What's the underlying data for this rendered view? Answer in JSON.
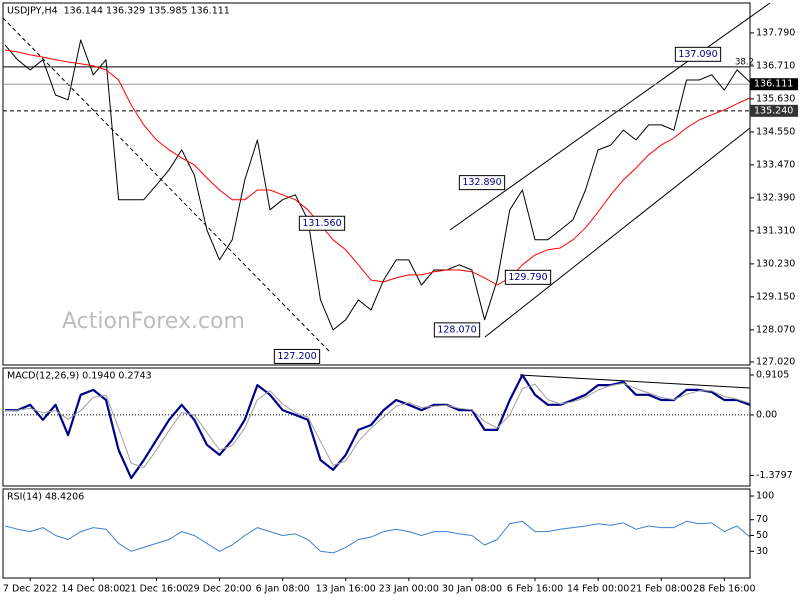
{
  "chart_data": [
    {
      "type": "line",
      "title": "USDJPY,H4",
      "subtitle": "136.144 136.329 135.985 136.111",
      "watermark": "ActionForex.com",
      "ylim": [
        126.92,
        138.77
      ],
      "yticks": [
        {
          "value": 137.79,
          "label": "137.790"
        },
        {
          "value": 136.71,
          "label": "136.710"
        },
        {
          "value": 135.63,
          "label": "135.630"
        },
        {
          "value": 134.55,
          "label": "134.550"
        },
        {
          "value": 133.47,
          "label": "133.470"
        },
        {
          "value": 132.39,
          "label": "132.390"
        },
        {
          "value": 131.31,
          "label": "131.310"
        },
        {
          "value": 130.23,
          "label": "130.230"
        },
        {
          "value": 129.15,
          "label": "129.150"
        },
        {
          "value": 128.07,
          "label": "128.070"
        },
        {
          "value": 127.02,
          "label": "127.020"
        }
      ],
      "series": [
        {
          "color": "#000000",
          "values": [
            137.4,
            136.91,
            136.58,
            136.91,
            135.76,
            135.6,
            137.56,
            136.42,
            136.91,
            132.33,
            132.33,
            132.33,
            132.81,
            133.31,
            133.96,
            133.14,
            131.34,
            130.36,
            131.02,
            132.98,
            134.29,
            132.0,
            132.33,
            132.49,
            131.67,
            129.05,
            128.07,
            128.4,
            129.05,
            128.72,
            129.7,
            130.36,
            130.36,
            129.54,
            130.03,
            130.03,
            130.2,
            130.03,
            128.4,
            129.7,
            132.0,
            132.65,
            131.02,
            131.02,
            131.34,
            131.67,
            132.65,
            133.96,
            134.12,
            134.61,
            134.29,
            134.78,
            134.78,
            134.61,
            136.25,
            136.25,
            136.42,
            135.92,
            136.58,
            136.19
          ]
        },
        {
          "color": "#ff0000",
          "values": [
            137.23,
            137.17,
            137.07,
            137.0,
            136.91,
            136.84,
            136.78,
            136.71,
            136.58,
            136.25,
            135.43,
            134.78,
            134.29,
            133.96,
            133.7,
            133.47,
            133.04,
            132.65,
            132.33,
            132.33,
            132.65,
            132.65,
            132.49,
            132.33,
            132.0,
            131.51,
            131.02,
            130.69,
            130.2,
            129.7,
            129.64,
            129.77,
            129.87,
            129.87,
            129.97,
            130.03,
            130.03,
            129.97,
            129.77,
            129.54,
            129.77,
            130.2,
            130.52,
            130.69,
            130.75,
            131.02,
            131.41,
            131.93,
            132.49,
            132.98,
            133.37,
            133.8,
            134.12,
            134.35,
            134.68,
            134.94,
            135.11,
            135.27,
            135.47,
            135.66
          ]
        }
      ],
      "annotations": [
        {
          "value": 137.09,
          "label": "137.090"
        },
        {
          "value": 132.89,
          "label": "132.890"
        },
        {
          "value": 131.56,
          "label": "131.560"
        },
        {
          "value": 129.79,
          "label": "129.790"
        },
        {
          "value": 128.07,
          "label": "128.070"
        },
        {
          "value": 127.2,
          "label": "127.200"
        }
      ],
      "fib_ratio": 38.2,
      "fib_level": 136.68,
      "last_price": {
        "value": 136.111,
        "label": "136.111"
      },
      "support": {
        "value": 135.24,
        "label": "135.240"
      }
    },
    {
      "type": "line",
      "title": "MACD(12,26,9) 0.1940 0.2743",
      "zero_line": true,
      "ylim": [
        -1.62,
        1.07
      ],
      "yticks": [
        0.9105,
        {
          "value": 0,
          "label": "0.00"
        },
        -1.3797
      ],
      "series": [
        {
          "color": "#00008b",
          "width": 2.2,
          "values": [
            0.11,
            0.11,
            0.23,
            -0.11,
            0.23,
            -0.46,
            0.46,
            0.57,
            0.34,
            -0.8,
            -1.44,
            -1.03,
            -0.57,
            -0.11,
            0.23,
            -0.11,
            -0.68,
            -0.91,
            -0.57,
            -0.11,
            0.68,
            0.46,
            0.11,
            0,
            -0.11,
            -1.03,
            -1.25,
            -0.91,
            -0.34,
            -0.23,
            0.11,
            0.34,
            0.23,
            0.11,
            0.23,
            0.23,
            0.11,
            0.11,
            -0.34,
            -0.34,
            0.34,
            0.91,
            0.46,
            0.23,
            0.23,
            0.34,
            0.46,
            0.68,
            0.68,
            0.75,
            0.46,
            0.46,
            0.34,
            0.34,
            0.57,
            0.57,
            0.52,
            0.34,
            0.34,
            0.23
          ]
        },
        {
          "color": "#a0a0a0",
          "width": 1,
          "values": [
            0.1,
            0.11,
            0.15,
            0.05,
            0.1,
            -0.1,
            0.1,
            0.4,
            0.45,
            -0.3,
            -1.1,
            -1.2,
            -0.8,
            -0.35,
            0.05,
            0.0,
            -0.4,
            -0.8,
            -0.7,
            -0.3,
            0.35,
            0.55,
            0.25,
            0.05,
            -0.05,
            -0.6,
            -1.15,
            -1.05,
            -0.6,
            -0.3,
            -0.05,
            0.2,
            0.28,
            0.17,
            0.2,
            0.22,
            0.15,
            0.12,
            -0.15,
            -0.3,
            0.0,
            0.6,
            0.7,
            0.35,
            0.25,
            0.3,
            0.4,
            0.57,
            0.67,
            0.72,
            0.6,
            0.5,
            0.4,
            0.35,
            0.47,
            0.55,
            0.55,
            0.42,
            0.36,
            0.27
          ]
        }
      ]
    },
    {
      "type": "line",
      "title": "RSI(14) 48.4206",
      "ylim": [
        -3.8,
        108.9
      ],
      "yticks": [
        100,
        70,
        50,
        30
      ],
      "categories": [
        null,
        null,
        "7 Dec 2022",
        null,
        null,
        null,
        null,
        "14 Dec 08:00",
        null,
        null,
        null,
        null,
        "21 Dec 16:00",
        null,
        null,
        null,
        null,
        "29 Dec 20:00",
        null,
        null,
        null,
        null,
        "6 Jan 08:00",
        null,
        null,
        null,
        null,
        "13 Jan 16:00",
        null,
        null,
        null,
        null,
        "23 Jan 00:00",
        null,
        null,
        null,
        null,
        "30 Jan 08:00",
        null,
        null,
        null,
        null,
        "6 Feb 16:00",
        null,
        null,
        null,
        null,
        "14 Feb 00:00",
        null,
        null,
        null,
        null,
        "21 Feb 08:00",
        null,
        null,
        null,
        null,
        "28 Feb 16:00",
        null,
        null
      ],
      "series": [
        {
          "color": "#3f7fcf",
          "width": 1,
          "values": [
            62,
            58,
            55,
            60,
            50,
            45,
            55,
            60,
            58,
            40,
            30,
            35,
            40,
            45,
            55,
            50,
            40,
            30,
            38,
            50,
            60,
            55,
            50,
            52,
            45,
            30,
            28,
            35,
            45,
            48,
            55,
            58,
            55,
            50,
            55,
            55,
            52,
            50,
            38,
            45,
            65,
            68,
            55,
            55,
            58,
            60,
            62,
            65,
            63,
            66,
            58,
            62,
            60,
            60,
            68,
            65,
            66,
            55,
            62,
            48.42
          ]
        }
      ]
    }
  ]
}
